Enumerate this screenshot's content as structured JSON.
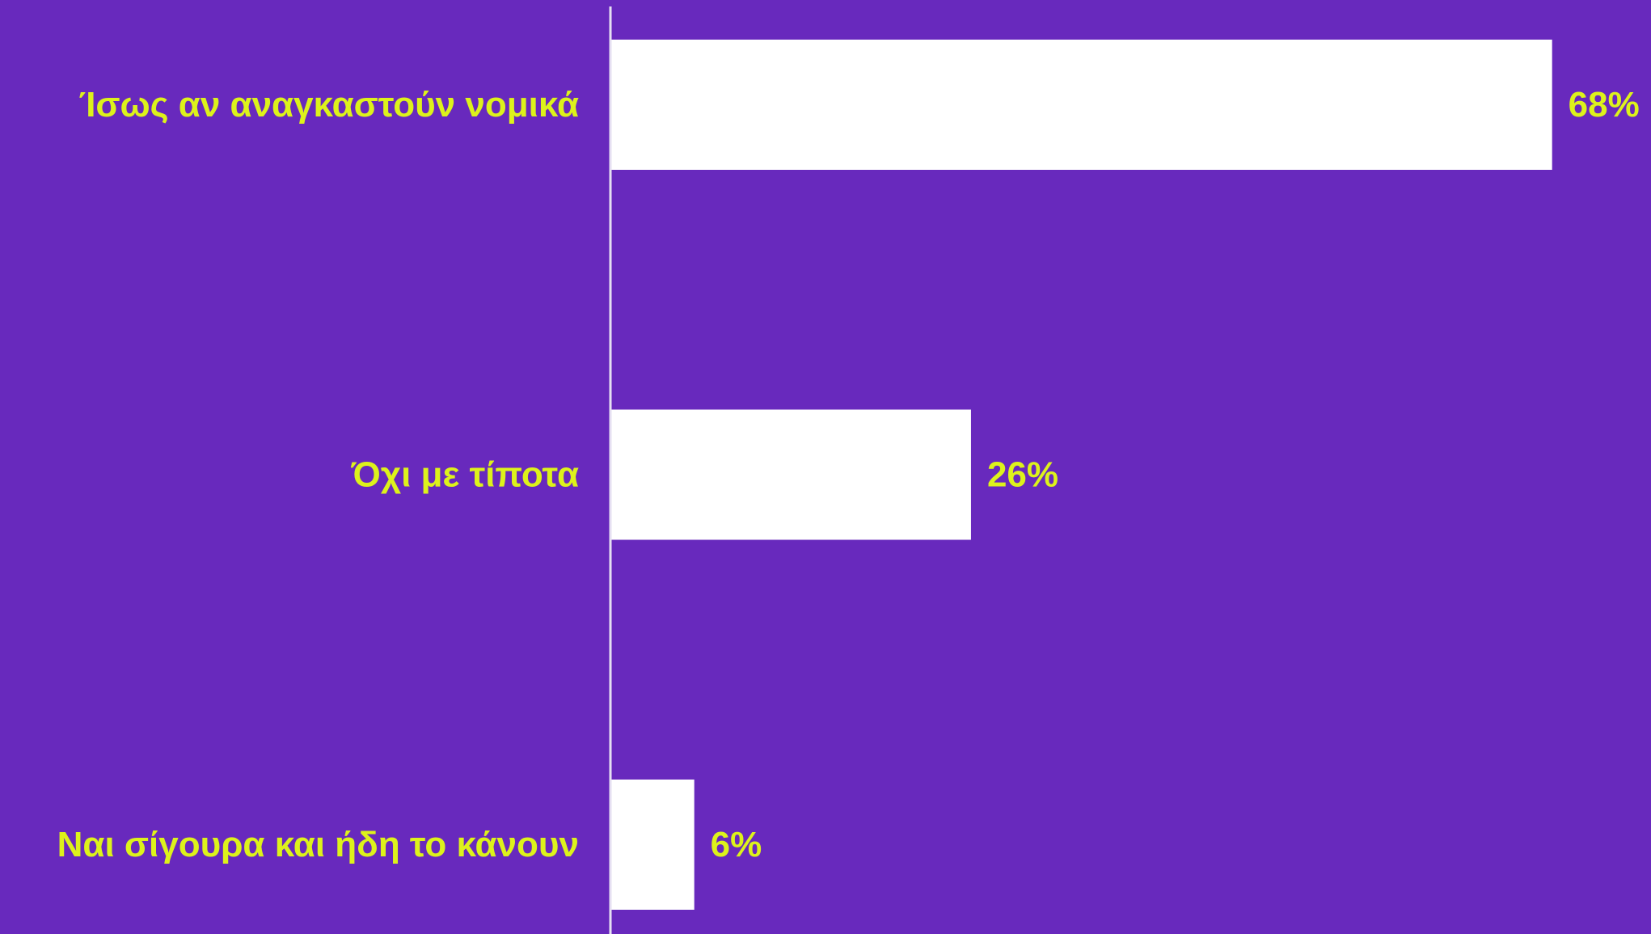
{
  "colors": {
    "background": "#6829BD",
    "bar": "#FFFFFF",
    "label": "#DDF21B",
    "axis": "#E6E0F2"
  },
  "chart_data": {
    "type": "bar",
    "orientation": "horizontal",
    "categories": [
      "Ίσως αν αναγκαστούν νομικά",
      "Όχι με τίποτα",
      "Ναι σίγουρα και ήδη το κάνουν"
    ],
    "values": [
      68,
      26,
      6
    ],
    "value_labels": [
      "68%",
      "26%",
      "6%"
    ],
    "xlim": [
      0,
      100
    ],
    "grid": false,
    "legend": "none"
  }
}
